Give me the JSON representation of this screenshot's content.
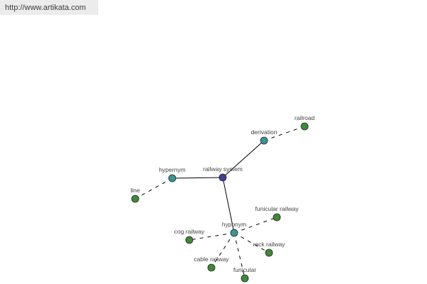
{
  "watermark": {
    "url": "http://www.artikata.com"
  },
  "colors": {
    "center": "#3f3f8f",
    "relation": "#3a9696",
    "term": "#3f8a3a",
    "edge": "#000000"
  },
  "graph": {
    "nodes": [
      {
        "id": "railway-system",
        "label": "railway system",
        "kind": "center"
      },
      {
        "id": "hypernym",
        "label": "hypernym",
        "kind": "relation"
      },
      {
        "id": "derivation",
        "label": "derivation",
        "kind": "relation"
      },
      {
        "id": "hyponym",
        "label": "hyponym",
        "kind": "relation"
      },
      {
        "id": "railroad",
        "label": "railroad",
        "kind": "term"
      },
      {
        "id": "line",
        "label": "line",
        "kind": "term"
      },
      {
        "id": "funicular-railway",
        "label": "funicular railway",
        "kind": "term"
      },
      {
        "id": "cog-railway",
        "label": "cog railway",
        "kind": "term"
      },
      {
        "id": "rack-railway",
        "label": "rack railway",
        "kind": "term"
      },
      {
        "id": "cable-railway",
        "label": "cable railway",
        "kind": "term"
      },
      {
        "id": "funicular",
        "label": "funicular",
        "kind": "term"
      }
    ],
    "edges": [
      {
        "from": "railway-system",
        "to": "hypernym",
        "style": "solid"
      },
      {
        "from": "railway-system",
        "to": "derivation",
        "style": "solid"
      },
      {
        "from": "railway-system",
        "to": "hyponym",
        "style": "solid"
      },
      {
        "from": "derivation",
        "to": "railroad",
        "style": "dashed"
      },
      {
        "from": "hypernym",
        "to": "line",
        "style": "dashed"
      },
      {
        "from": "hyponym",
        "to": "funicular-railway",
        "style": "dashed"
      },
      {
        "from": "hyponym",
        "to": "cog-railway",
        "style": "dashed"
      },
      {
        "from": "hyponym",
        "to": "rack-railway",
        "style": "dashed"
      },
      {
        "from": "hyponym",
        "to": "cable-railway",
        "style": "dashed"
      },
      {
        "from": "hyponym",
        "to": "funicular",
        "style": "dashed"
      }
    ]
  }
}
